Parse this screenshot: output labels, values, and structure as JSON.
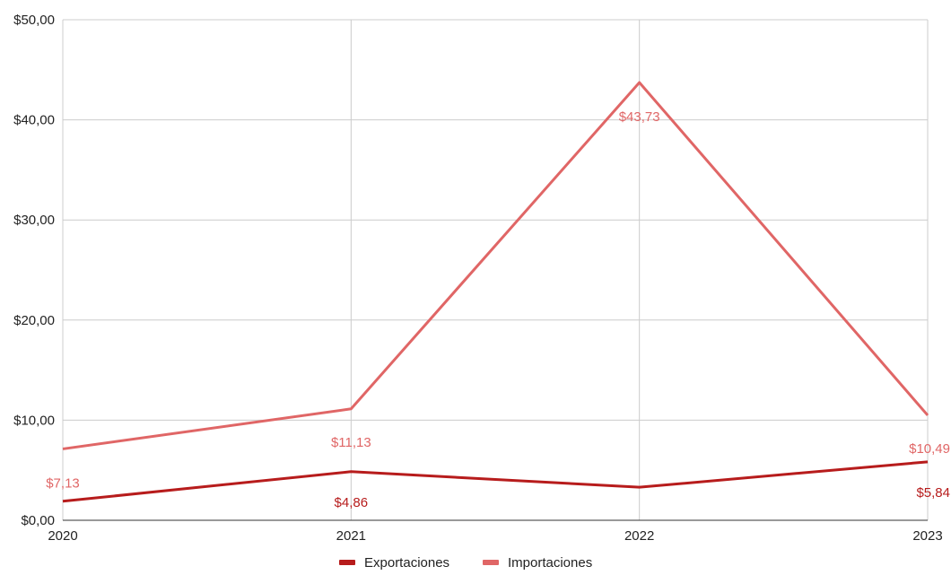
{
  "chart_data": {
    "type": "line",
    "categories": [
      "2020",
      "2021",
      "2022",
      "2023"
    ],
    "ylim": [
      0,
      50
    ],
    "yticks": [
      0,
      10,
      20,
      30,
      40,
      50
    ],
    "ytick_labels": [
      "$0,00",
      "$10,00",
      "$20,00",
      "$30,00",
      "$40,00",
      "$50,00"
    ],
    "grid": true,
    "legend_position": "bottom",
    "series": [
      {
        "name": "Exportaciones",
        "color": "#b71c1c",
        "values": [
          1.9,
          4.86,
          3.3,
          5.84
        ],
        "labels": [
          "",
          "$4,86",
          "",
          "$5,84"
        ]
      },
      {
        "name": "Importaciones",
        "color": "#e06666",
        "values": [
          7.13,
          11.13,
          43.73,
          10.49
        ],
        "labels": [
          "$7,13",
          "$11,13",
          "$43,73",
          "$10,49"
        ]
      }
    ]
  }
}
